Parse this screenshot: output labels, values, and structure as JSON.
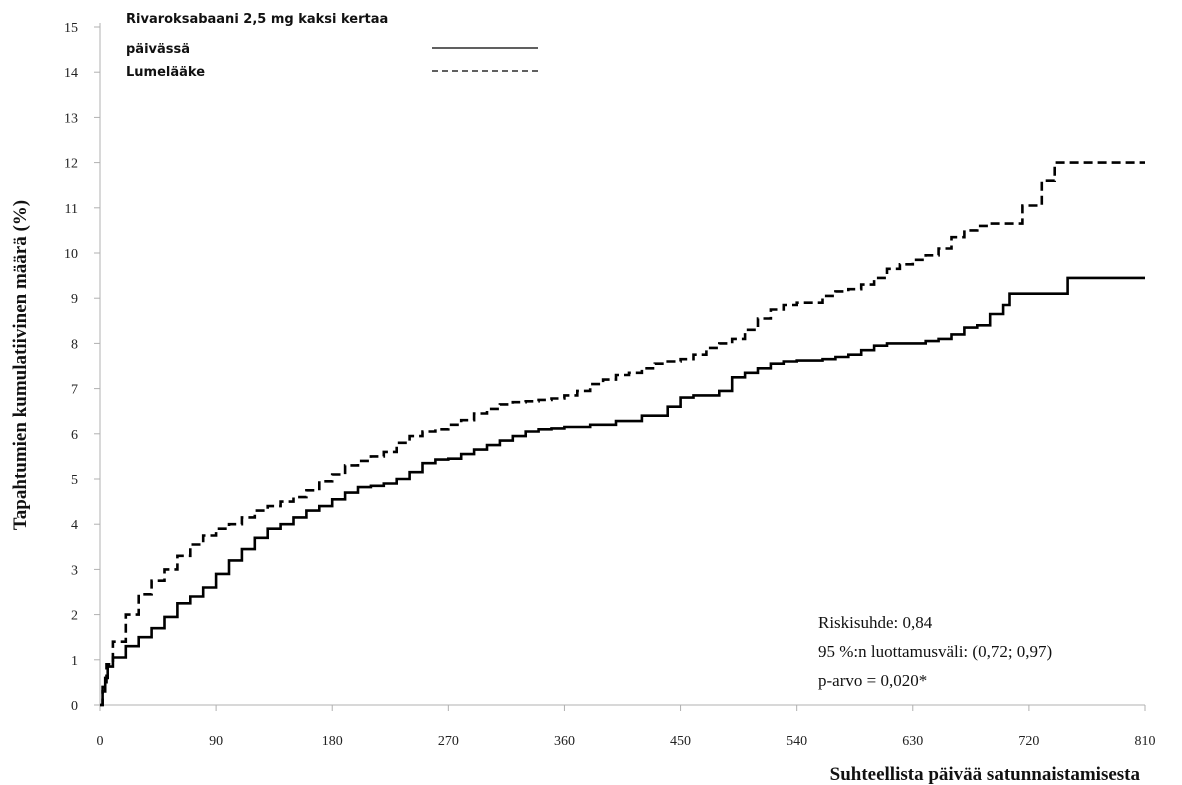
{
  "chart_data": {
    "type": "line",
    "ylabel": "Tapahtumien kumulatiivinen määrä (%)",
    "xlabel": "Suhteellista päivää satunnaistamisesta",
    "xlim": [
      0,
      810
    ],
    "ylim": [
      0,
      15
    ],
    "xticks": [
      0,
      90,
      180,
      270,
      360,
      450,
      540,
      630,
      720,
      810
    ],
    "yticks": [
      0,
      1,
      2,
      3,
      4,
      5,
      6,
      7,
      8,
      9,
      10,
      11,
      12,
      13,
      14,
      15
    ],
    "grid": false,
    "legend_position": "top-left",
    "legend": {
      "line1": "Rivaroksabaani 2,5 mg kaksi kertaa",
      "line2": "päivässä",
      "line3": "Lumelääke"
    },
    "annotations": {
      "hr": "Riskisuhde: 0,84",
      "ci": "95 %:n luottamusväli: (0,72; 0,97)",
      "p": "p-arvo = 0,020*"
    },
    "series": [
      {
        "name": "Rivaroksabaani 2,5 mg kaksi kertaa päivässä",
        "style": "solid",
        "color": "#000000",
        "points": [
          [
            0,
            0
          ],
          [
            2,
            0.3
          ],
          [
            4,
            0.6
          ],
          [
            6,
            0.85
          ],
          [
            10,
            1.05
          ],
          [
            20,
            1.3
          ],
          [
            30,
            1.5
          ],
          [
            40,
            1.7
          ],
          [
            50,
            1.95
          ],
          [
            60,
            2.25
          ],
          [
            70,
            2.4
          ],
          [
            80,
            2.6
          ],
          [
            90,
            2.9
          ],
          [
            100,
            3.2
          ],
          [
            110,
            3.45
          ],
          [
            120,
            3.7
          ],
          [
            130,
            3.9
          ],
          [
            140,
            4.0
          ],
          [
            150,
            4.15
          ],
          [
            160,
            4.3
          ],
          [
            170,
            4.4
          ],
          [
            180,
            4.55
          ],
          [
            190,
            4.7
          ],
          [
            200,
            4.82
          ],
          [
            210,
            4.85
          ],
          [
            220,
            4.9
          ],
          [
            230,
            5.0
          ],
          [
            240,
            5.15
          ],
          [
            250,
            5.35
          ],
          [
            260,
            5.43
          ],
          [
            270,
            5.45
          ],
          [
            280,
            5.55
          ],
          [
            290,
            5.65
          ],
          [
            300,
            5.75
          ],
          [
            310,
            5.85
          ],
          [
            320,
            5.95
          ],
          [
            330,
            6.05
          ],
          [
            340,
            6.1
          ],
          [
            350,
            6.12
          ],
          [
            360,
            6.15
          ],
          [
            380,
            6.2
          ],
          [
            400,
            6.28
          ],
          [
            420,
            6.4
          ],
          [
            440,
            6.6
          ],
          [
            450,
            6.8
          ],
          [
            460,
            6.85
          ],
          [
            470,
            6.85
          ],
          [
            480,
            6.95
          ],
          [
            490,
            7.25
          ],
          [
            500,
            7.35
          ],
          [
            510,
            7.45
          ],
          [
            520,
            7.55
          ],
          [
            530,
            7.6
          ],
          [
            540,
            7.62
          ],
          [
            560,
            7.65
          ],
          [
            570,
            7.7
          ],
          [
            580,
            7.75
          ],
          [
            590,
            7.85
          ],
          [
            600,
            7.95
          ],
          [
            610,
            8.0
          ],
          [
            630,
            8.0
          ],
          [
            640,
            8.05
          ],
          [
            650,
            8.1
          ],
          [
            660,
            8.2
          ],
          [
            670,
            8.35
          ],
          [
            680,
            8.4
          ],
          [
            690,
            8.65
          ],
          [
            700,
            8.85
          ],
          [
            705,
            9.1
          ],
          [
            720,
            9.1
          ],
          [
            745,
            9.1
          ],
          [
            750,
            9.45
          ],
          [
            810,
            9.45
          ]
        ]
      },
      {
        "name": "Lumelääke",
        "style": "dashed",
        "color": "#000000",
        "points": [
          [
            0,
            0
          ],
          [
            2,
            0.4
          ],
          [
            5,
            0.9
          ],
          [
            10,
            1.4
          ],
          [
            20,
            2.0
          ],
          [
            30,
            2.45
          ],
          [
            40,
            2.75
          ],
          [
            50,
            3.0
          ],
          [
            60,
            3.3
          ],
          [
            70,
            3.55
          ],
          [
            80,
            3.75
          ],
          [
            90,
            3.9
          ],
          [
            100,
            4.0
          ],
          [
            110,
            4.15
          ],
          [
            120,
            4.3
          ],
          [
            130,
            4.4
          ],
          [
            140,
            4.5
          ],
          [
            150,
            4.6
          ],
          [
            160,
            4.75
          ],
          [
            170,
            4.95
          ],
          [
            180,
            5.1
          ],
          [
            190,
            5.3
          ],
          [
            200,
            5.4
          ],
          [
            210,
            5.5
          ],
          [
            220,
            5.6
          ],
          [
            230,
            5.8
          ],
          [
            240,
            5.95
          ],
          [
            250,
            6.05
          ],
          [
            260,
            6.1
          ],
          [
            270,
            6.2
          ],
          [
            280,
            6.3
          ],
          [
            290,
            6.45
          ],
          [
            300,
            6.55
          ],
          [
            310,
            6.65
          ],
          [
            320,
            6.7
          ],
          [
            330,
            6.72
          ],
          [
            340,
            6.75
          ],
          [
            350,
            6.78
          ],
          [
            360,
            6.85
          ],
          [
            370,
            6.95
          ],
          [
            380,
            7.1
          ],
          [
            390,
            7.2
          ],
          [
            400,
            7.3
          ],
          [
            410,
            7.35
          ],
          [
            420,
            7.45
          ],
          [
            430,
            7.55
          ],
          [
            440,
            7.6
          ],
          [
            450,
            7.65
          ],
          [
            460,
            7.75
          ],
          [
            470,
            7.9
          ],
          [
            480,
            8.0
          ],
          [
            490,
            8.1
          ],
          [
            500,
            8.3
          ],
          [
            510,
            8.55
          ],
          [
            520,
            8.75
          ],
          [
            530,
            8.85
          ],
          [
            540,
            8.9
          ],
          [
            550,
            8.9
          ],
          [
            560,
            9.05
          ],
          [
            570,
            9.15
          ],
          [
            580,
            9.2
          ],
          [
            590,
            9.3
          ],
          [
            600,
            9.45
          ],
          [
            610,
            9.65
          ],
          [
            620,
            9.75
          ],
          [
            630,
            9.85
          ],
          [
            640,
            9.95
          ],
          [
            650,
            10.1
          ],
          [
            660,
            10.35
          ],
          [
            670,
            10.5
          ],
          [
            680,
            10.6
          ],
          [
            690,
            10.65
          ],
          [
            700,
            10.65
          ],
          [
            710,
            10.65
          ],
          [
            715,
            11.05
          ],
          [
            725,
            11.05
          ],
          [
            730,
            11.6
          ],
          [
            735,
            11.6
          ],
          [
            740,
            12.0
          ],
          [
            810,
            12.0
          ]
        ]
      }
    ]
  }
}
